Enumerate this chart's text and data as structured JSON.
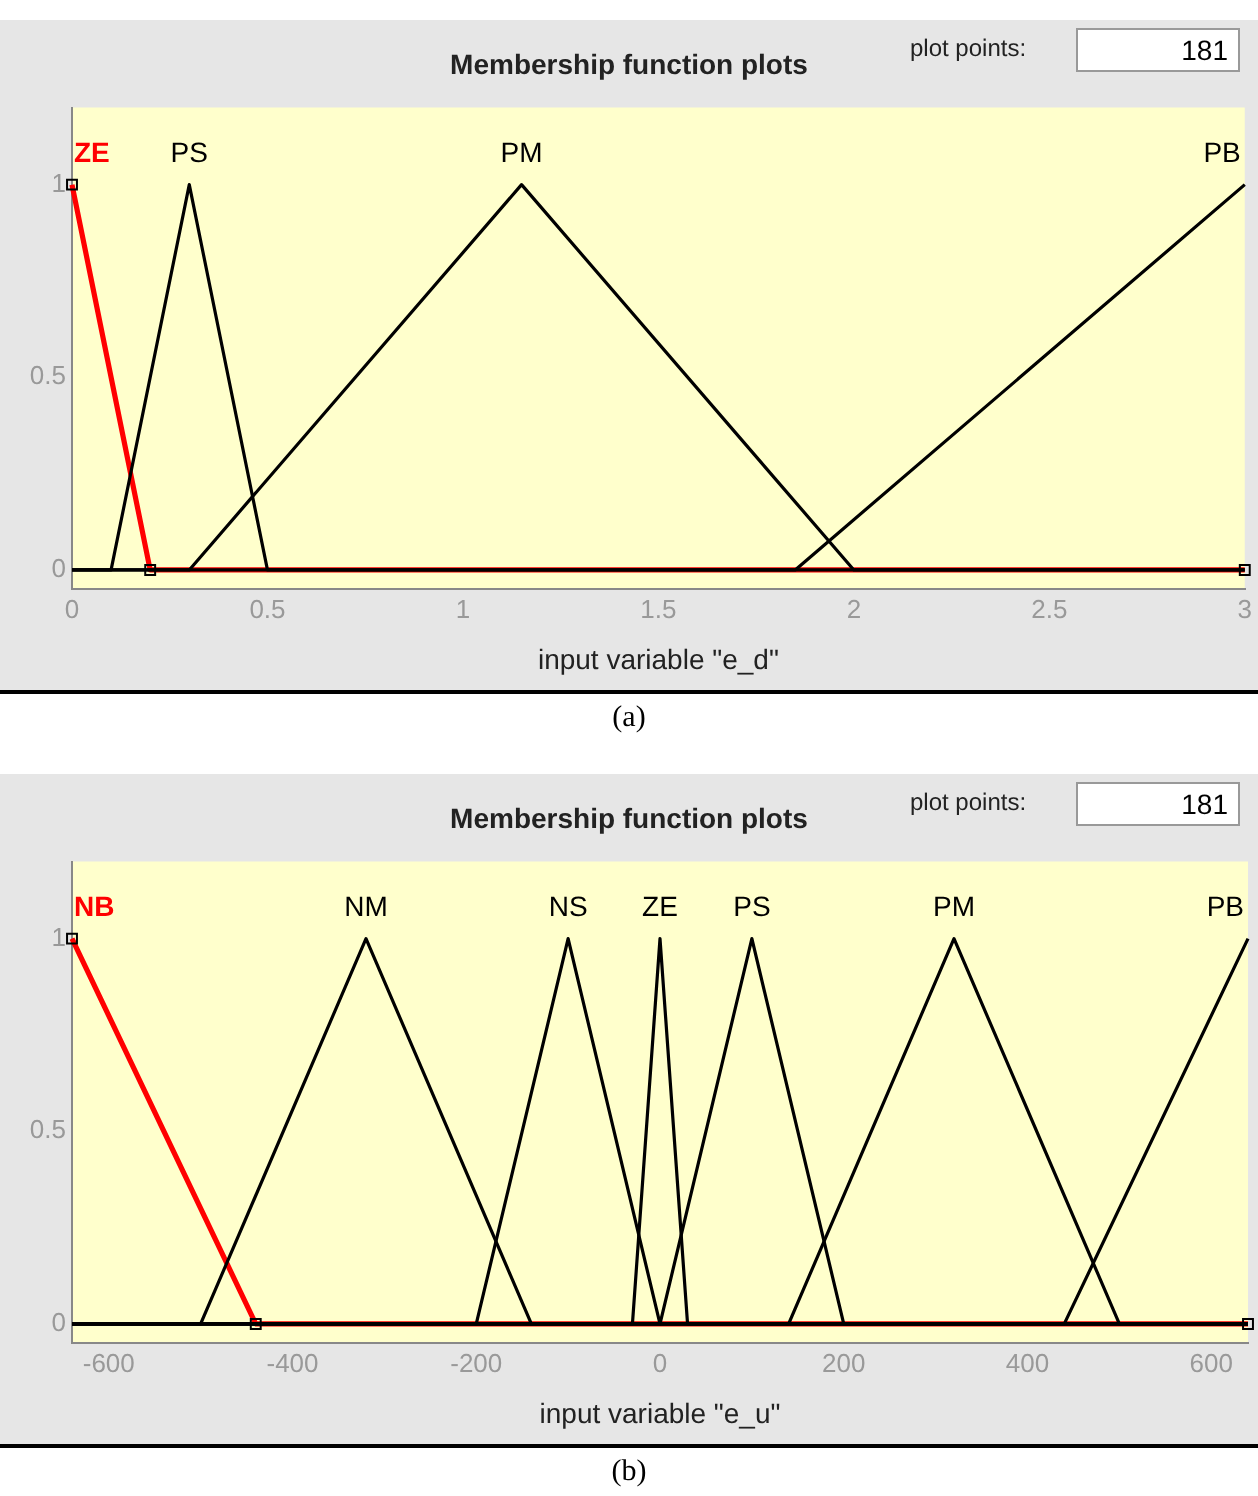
{
  "chart_data": [
    {
      "type": "line",
      "title": "Membership function plots",
      "xlabel": "input variable \"e_d\"",
      "xlim": [
        0,
        3
      ],
      "xticks": [
        0,
        0.5,
        1,
        1.5,
        2,
        2.5,
        3
      ],
      "ylim": [
        -0.05,
        1.2
      ],
      "yticks": [
        0,
        0.5,
        1
      ],
      "grid": false,
      "legend": false,
      "annotations": [
        "plot points:",
        "181",
        "(a)"
      ],
      "series": [
        {
          "name": "PS",
          "color": "#000000",
          "x": [
            0,
            0.1,
            0.3,
            0.5,
            3
          ],
          "values": [
            0,
            0,
            1,
            0,
            0
          ]
        },
        {
          "name": "PM",
          "color": "#000000",
          "x": [
            0,
            0.3,
            1.15,
            2,
            3
          ],
          "values": [
            0,
            0,
            1,
            0,
            0
          ]
        },
        {
          "name": "PB",
          "color": "#000000",
          "x": [
            0,
            1.85,
            3
          ],
          "values": [
            0,
            0,
            1
          ]
        },
        {
          "name": "ZE",
          "color": "#ff0000",
          "marker": "square",
          "x": [
            0,
            0.2,
            3
          ],
          "values": [
            1,
            0,
            0
          ]
        }
      ]
    },
    {
      "type": "line",
      "title": "Membership function plots",
      "xlabel": "input variable \"e_u\"",
      "xlim": [
        -640,
        640
      ],
      "xticks": [
        -600,
        -400,
        -200,
        0,
        200,
        400,
        600
      ],
      "ylim": [
        -0.05,
        1.2
      ],
      "yticks": [
        0,
        0.5,
        1
      ],
      "grid": false,
      "legend": false,
      "annotations": [
        "plot points:",
        "181",
        "(b)"
      ],
      "series": [
        {
          "name": "NM",
          "color": "#000000",
          "x": [
            -640,
            -500,
            -320,
            -140,
            640
          ],
          "values": [
            0,
            0,
            1,
            0,
            0
          ]
        },
        {
          "name": "NS",
          "color": "#000000",
          "x": [
            -640,
            -200,
            -100,
            0,
            640
          ],
          "values": [
            0,
            0,
            1,
            0,
            0
          ]
        },
        {
          "name": "ZE",
          "color": "#000000",
          "x": [
            -640,
            -30,
            0,
            30,
            640
          ],
          "values": [
            0,
            0,
            1,
            0,
            0
          ]
        },
        {
          "name": "PS",
          "color": "#000000",
          "x": [
            -640,
            0,
            100,
            200,
            640
          ],
          "values": [
            0,
            0,
            1,
            0,
            0
          ]
        },
        {
          "name": "PM",
          "color": "#000000",
          "x": [
            -640,
            140,
            320,
            500,
            640
          ],
          "values": [
            0,
            0,
            1,
            0,
            0
          ]
        },
        {
          "name": "PB",
          "color": "#000000",
          "x": [
            -640,
            440,
            640
          ],
          "values": [
            0,
            0,
            1
          ]
        },
        {
          "name": "NB",
          "color": "#ff0000",
          "marker": "square",
          "x": [
            -640,
            -440,
            640
          ],
          "values": [
            1,
            0,
            0
          ]
        }
      ]
    }
  ]
}
